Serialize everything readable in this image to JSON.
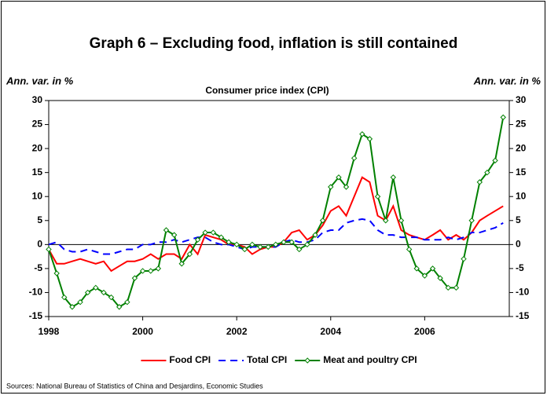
{
  "chart_data": {
    "type": "line",
    "title": "Graph 6 – Excluding food, inflation is still contained",
    "subtitle": "Consumer price index (CPI)",
    "y_label": "Ann. var. in %",
    "y2_label": "Ann. var. in %",
    "source": "Sources: National Bureau of Statistics of China and Desjardins, Economic Studies",
    "x": [
      1998,
      1998.17,
      1998.33,
      1998.5,
      1998.67,
      1998.83,
      1999,
      1999.17,
      1999.33,
      1999.5,
      1999.67,
      1999.83,
      2000,
      2000.17,
      2000.33,
      2000.5,
      2000.67,
      2000.83,
      2001,
      2001.17,
      2001.33,
      2001.5,
      2001.67,
      2001.83,
      2002,
      2002.17,
      2002.33,
      2002.5,
      2002.67,
      2002.83,
      2003,
      2003.17,
      2003.33,
      2003.5,
      2003.67,
      2003.83,
      2004,
      2004.17,
      2004.33,
      2004.5,
      2004.67,
      2004.83,
      2005,
      2005.17,
      2005.33,
      2005.5,
      2005.67,
      2005.83,
      2006,
      2006.17,
      2006.33,
      2006.5,
      2006.67,
      2006.83,
      2007,
      2007.17,
      2007.33,
      2007.5,
      2007.67
    ],
    "xlim": [
      1998,
      2007.8
    ],
    "xticks": [
      1998,
      2000,
      2002,
      2004,
      2006
    ],
    "ylim": [
      -15,
      30
    ],
    "yticks": [
      -15,
      -10,
      -5,
      0,
      5,
      10,
      15,
      20,
      25,
      30
    ],
    "y2lim": [
      -15,
      30
    ],
    "y2ticks": [
      -15,
      -10,
      -5,
      0,
      5,
      10,
      15,
      20,
      25,
      30
    ],
    "legend": "bottom",
    "series": [
      {
        "name": "Food CPI",
        "color": "#ff0000",
        "style": "solid",
        "values": [
          -1,
          -4,
          -4,
          -3.5,
          -3,
          -3.5,
          -4,
          -3.5,
          -5.5,
          -4.5,
          -3.5,
          -3.5,
          -3,
          -2,
          -3,
          -2,
          -2,
          -3,
          0,
          -2,
          2,
          1.5,
          1,
          0,
          0,
          -0.5,
          -2,
          -1,
          -0.5,
          -0.5,
          0.5,
          2.5,
          3,
          1,
          2,
          4,
          7,
          8,
          6,
          10,
          14,
          13,
          6,
          5,
          8,
          3,
          2,
          1.5,
          1,
          2,
          3,
          1,
          2,
          1,
          2.5,
          5,
          6,
          7,
          8
        ]
      },
      {
        "name": "Total CPI",
        "color": "#0000ff",
        "style": "dashed",
        "values": [
          0,
          0.5,
          -1,
          -1.5,
          -1.5,
          -1,
          -1.5,
          -2,
          -2,
          -1.5,
          -1,
          -1,
          0,
          0,
          0.5,
          0.5,
          1,
          0.5,
          1,
          1.5,
          1.5,
          0.5,
          0,
          0,
          -0.5,
          -1,
          -0.5,
          -0.5,
          -0.5,
          -0.5,
          0.5,
          1,
          0.5,
          0.5,
          1,
          2.5,
          3,
          3,
          4.5,
          5,
          5.3,
          5,
          3,
          2,
          2,
          1.5,
          1.5,
          1.5,
          1,
          1,
          1,
          1.5,
          1,
          1.5,
          2.5,
          2.5,
          3,
          3.5,
          4.5
        ]
      },
      {
        "name": "Meat and poultry CPI",
        "color": "#008000",
        "style": "markers",
        "values": [
          -1,
          -6,
          -11,
          -13,
          -12,
          -10,
          -9,
          -10,
          -11,
          -13,
          -12,
          -7,
          -5.5,
          -5.5,
          -5,
          3,
          2,
          -4,
          -2,
          1,
          2.5,
          2.5,
          1.5,
          0.5,
          0,
          -1,
          0,
          -0.5,
          -0.5,
          0,
          0.5,
          0.5,
          -1,
          0,
          2,
          5,
          12,
          14,
          12,
          18,
          23,
          22,
          10,
          5,
          14,
          5,
          -1,
          -5,
          -6.5,
          -5,
          -7,
          -9,
          -9,
          -3,
          5,
          13,
          15,
          17.5,
          26.5
        ]
      }
    ]
  }
}
